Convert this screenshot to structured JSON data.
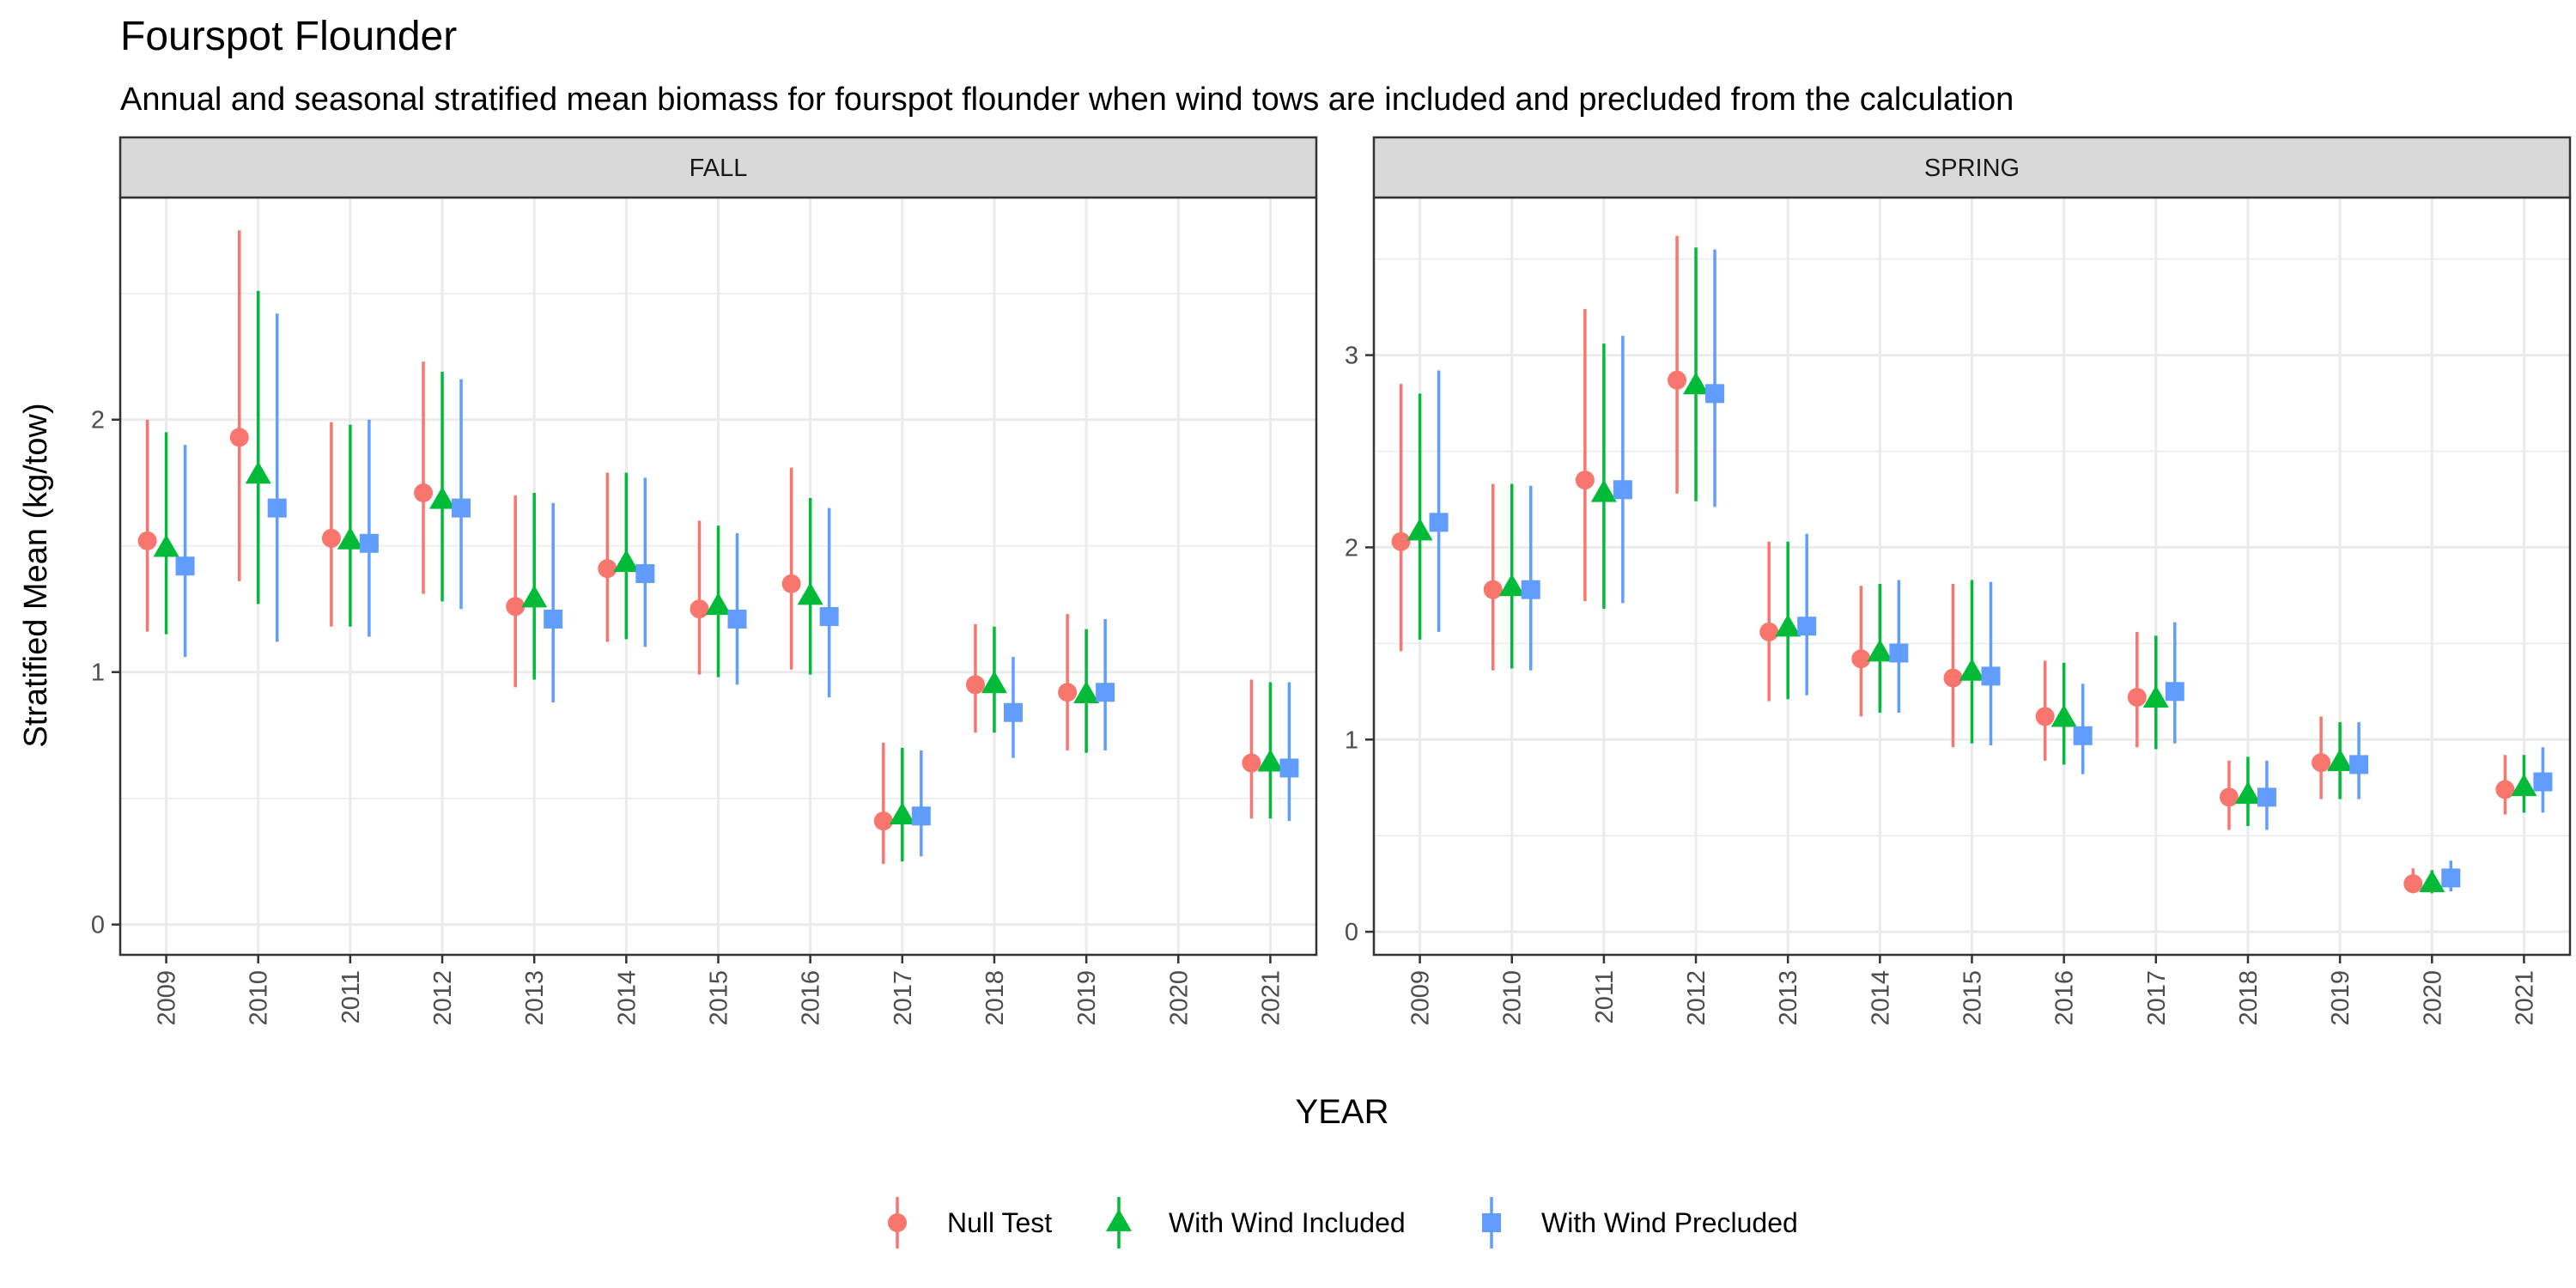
{
  "chart_data": {
    "type": "scatter",
    "title": "Fourspot Flounder",
    "subtitle": "Annual and seasonal stratified mean biomass for fourspot flounder when wind tows are included and precluded from the calculation",
    "xlabel": "YEAR",
    "ylabel": "Stratified Mean (kg/tow)",
    "categories": [
      "2009",
      "2010",
      "2011",
      "2012",
      "2013",
      "2014",
      "2015",
      "2016",
      "2017",
      "2018",
      "2019",
      "2020",
      "2021"
    ],
    "legend": {
      "position": "bottom"
    },
    "colors": {
      "Null Test": "#F8766D",
      "With Wind Included": "#00BA38",
      "With Wind Precluded": "#619CFF"
    },
    "series_names": [
      "Null Test",
      "With Wind Included",
      "With Wind Precluded"
    ],
    "panels": [
      {
        "strip": "FALL",
        "ylim": [
          -0.12,
          2.88
        ],
        "yticks": [
          0,
          1,
          2
        ],
        "series": [
          {
            "name": "Null Test",
            "shape": "circle",
            "mean": [
              1.52,
              1.93,
              1.53,
              1.71,
              1.26,
              1.41,
              1.25,
              1.35,
              0.41,
              0.95,
              0.92,
              null,
              0.64
            ],
            "low": [
              1.16,
              1.36,
              1.18,
              1.31,
              0.94,
              1.12,
              0.99,
              1.01,
              0.24,
              0.76,
              0.69,
              null,
              0.42
            ],
            "high": [
              2.0,
              2.75,
              1.99,
              2.23,
              1.7,
              1.79,
              1.6,
              1.81,
              0.72,
              1.19,
              1.23,
              null,
              0.97
            ]
          },
          {
            "name": "With Wind Included",
            "shape": "triangle",
            "mean": [
              1.49,
              1.78,
              1.52,
              1.68,
              1.29,
              1.43,
              1.26,
              1.3,
              0.43,
              0.95,
              0.91,
              null,
              0.64
            ],
            "low": [
              1.15,
              1.27,
              1.18,
              1.28,
              0.97,
              1.13,
              0.98,
              0.99,
              0.25,
              0.76,
              0.68,
              null,
              0.42
            ],
            "high": [
              1.95,
              2.51,
              1.98,
              2.19,
              1.71,
              1.79,
              1.58,
              1.69,
              0.7,
              1.18,
              1.17,
              null,
              0.96
            ]
          },
          {
            "name": "With Wind Precluded",
            "shape": "square",
            "mean": [
              1.42,
              1.65,
              1.51,
              1.65,
              1.21,
              1.39,
              1.21,
              1.22,
              0.43,
              0.84,
              0.92,
              null,
              0.62
            ],
            "low": [
              1.06,
              1.12,
              1.14,
              1.25,
              0.88,
              1.1,
              0.95,
              0.9,
              0.27,
              0.66,
              0.69,
              null,
              0.41
            ],
            "high": [
              1.9,
              2.42,
              2.0,
              2.16,
              1.67,
              1.77,
              1.55,
              1.65,
              0.69,
              1.06,
              1.21,
              null,
              0.96
            ]
          }
        ]
      },
      {
        "strip": "SPRING",
        "ylim": [
          -0.12,
          3.82
        ],
        "yticks": [
          0,
          1,
          2,
          3
        ],
        "series": [
          {
            "name": "Null Test",
            "shape": "circle",
            "mean": [
              2.03,
              1.78,
              2.35,
              2.87,
              1.56,
              1.42,
              1.32,
              1.12,
              1.22,
              0.7,
              0.88,
              0.25,
              0.74
            ],
            "low": [
              1.46,
              1.36,
              1.72,
              2.28,
              1.2,
              1.12,
              0.96,
              0.89,
              0.96,
              0.53,
              0.69,
              0.2,
              0.61
            ],
            "high": [
              2.85,
              2.33,
              3.24,
              3.62,
              2.03,
              1.8,
              1.81,
              1.41,
              1.56,
              0.89,
              1.12,
              0.33,
              0.92
            ]
          },
          {
            "name": "With Wind Included",
            "shape": "triangle",
            "mean": [
              2.08,
              1.79,
              2.28,
              2.84,
              1.58,
              1.45,
              1.35,
              1.11,
              1.21,
              0.71,
              0.88,
              0.25,
              0.75
            ],
            "low": [
              1.52,
              1.37,
              1.68,
              2.24,
              1.21,
              1.14,
              0.98,
              0.87,
              0.95,
              0.55,
              0.69,
              0.2,
              0.62
            ],
            "high": [
              2.8,
              2.33,
              3.06,
              3.56,
              2.03,
              1.81,
              1.83,
              1.4,
              1.54,
              0.91,
              1.09,
              0.32,
              0.92
            ]
          },
          {
            "name": "With Wind Precluded",
            "shape": "square",
            "mean": [
              2.13,
              1.78,
              2.3,
              2.8,
              1.59,
              1.45,
              1.33,
              1.02,
              1.25,
              0.7,
              0.87,
              0.28,
              0.78
            ],
            "low": [
              1.56,
              1.36,
              1.71,
              2.21,
              1.23,
              1.14,
              0.97,
              0.82,
              0.98,
              0.53,
              0.69,
              0.21,
              0.62
            ],
            "high": [
              2.92,
              2.32,
              3.1,
              3.55,
              2.07,
              1.83,
              1.82,
              1.29,
              1.61,
              0.89,
              1.09,
              0.37,
              0.96
            ]
          }
        ]
      }
    ]
  }
}
